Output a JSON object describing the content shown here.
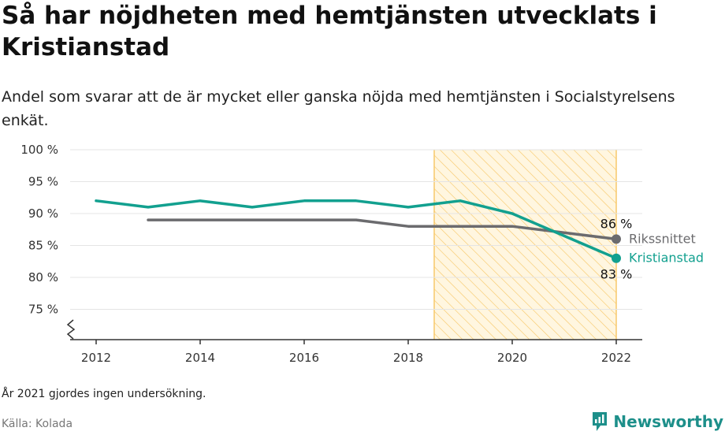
{
  "title": "Så har nöjdheten med hemtjänsten utvecklats i Kristianstad",
  "subtitle": "Andel som svarar att de är mycket eller ganska nöjda med hemtjänsten i Socialstyrelsens enkät.",
  "footnote": "År 2021 gjordes ingen undersökning.",
  "source": "Källa: Kolada",
  "brand": "Newsworthy",
  "colors": {
    "kristianstad": "#12a08f",
    "riksnittet": "#6b6b6e",
    "highlight_stroke": "#f7c86a",
    "highlight_fill": "#fff6e0",
    "grid": "#e4e4e4"
  },
  "chart_data": {
    "type": "line",
    "x": [
      2012,
      2013,
      2014,
      2015,
      2016,
      2017,
      2018,
      2019,
      2020,
      2022
    ],
    "xticks": [
      2012,
      2014,
      2016,
      2018,
      2020,
      2022
    ],
    "xtick_labels": [
      "2012",
      "2014",
      "2016",
      "2018",
      "2020",
      "2022"
    ],
    "xlim": [
      2012,
      2022
    ],
    "ylim": [
      70,
      100
    ],
    "yticks": [
      75,
      80,
      85,
      90,
      95,
      100
    ],
    "ytick_labels": [
      "75 %",
      "80 %",
      "85 %",
      "90 %",
      "95 %",
      "100 %"
    ],
    "axis_break": true,
    "grid": true,
    "highlight_range": [
      2018.5,
      2022
    ],
    "series": [
      {
        "name": "Kristianstad",
        "values": [
          92,
          91,
          92,
          91,
          92,
          92,
          91,
          92,
          90,
          83
        ],
        "end_label": "83 %"
      },
      {
        "name": "Rikssnittet",
        "values": [
          null,
          89,
          89,
          89,
          89,
          89,
          88,
          88,
          88,
          86
        ],
        "end_label": "86 %"
      }
    ]
  }
}
